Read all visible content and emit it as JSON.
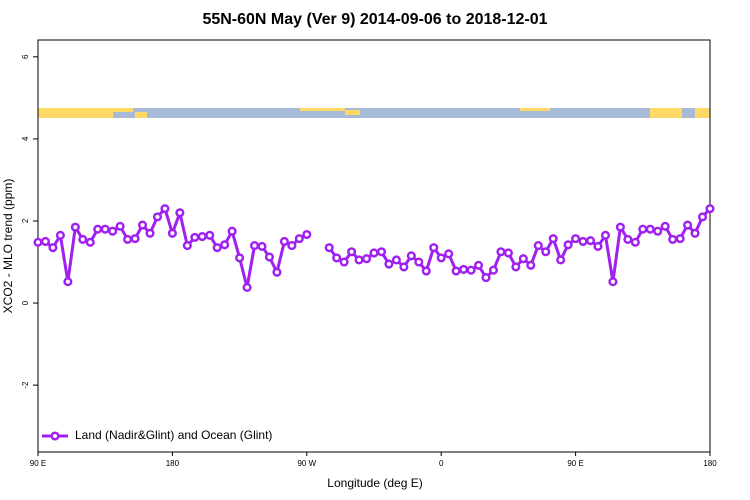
{
  "chart_data": {
    "type": "line",
    "title": "55N-60N May (Ver 9)   2014-09-06 to 2018-12-01",
    "x_label": "Longitude (deg E)",
    "y_label": "XCO2 - MLO trend (ppm)",
    "x": [
      90,
      95,
      100,
      105,
      110,
      115,
      120,
      125,
      130,
      135,
      140,
      145,
      150,
      155,
      160,
      165,
      170,
      175,
      180,
      185,
      190,
      195,
      200,
      205,
      210,
      215,
      220,
      225,
      230,
      235,
      240,
      245,
      250,
      255,
      260,
      265,
      270,
      275,
      280,
      285,
      290,
      295,
      300,
      305,
      310,
      315,
      320,
      325,
      330,
      335,
      340,
      345,
      350,
      355,
      360,
      365,
      370,
      375,
      380,
      385,
      390,
      395,
      400,
      405,
      410,
      415,
      420,
      425,
      430,
      435,
      440,
      445,
      450,
      455,
      460,
      465,
      470,
      475,
      480,
      485,
      490,
      495,
      500,
      505,
      510,
      515,
      520,
      525,
      530,
      535,
      540
    ],
    "series": [
      {
        "name": "Land (Nadir&Glint) and Ocean (Glint)",
        "color": "#a020f0",
        "values": [
          1.48,
          1.5,
          1.35,
          1.65,
          0.52,
          1.85,
          1.55,
          1.48,
          1.8,
          1.8,
          1.75,
          1.87,
          1.55,
          1.57,
          1.9,
          1.7,
          2.1,
          2.3,
          1.7,
          2.2,
          1.4,
          1.6,
          1.62,
          1.65,
          1.35,
          1.42,
          1.75,
          1.1,
          0.38,
          1.4,
          1.38,
          1.12,
          0.75,
          1.5,
          1.4,
          1.57,
          1.67,
          null,
          null,
          1.35,
          1.1,
          1.0,
          1.25,
          1.05,
          1.08,
          1.22,
          1.25,
          0.95,
          1.05,
          0.88,
          1.15,
          1.0,
          0.78,
          1.35,
          1.1,
          1.2,
          0.78,
          0.82,
          0.8,
          0.92,
          0.62,
          0.8,
          1.25,
          1.22,
          0.88,
          1.08,
          0.92,
          1.4,
          1.25,
          1.57,
          1.05,
          1.42,
          1.57,
          1.5,
          1.52,
          1.38,
          1.65,
          0.52,
          1.85,
          1.55,
          1.48,
          1.8,
          1.8,
          1.75,
          1.87,
          1.55,
          1.57,
          1.9,
          1.7,
          2.1,
          2.3
        ]
      }
    ],
    "xlim": [
      90,
      540
    ],
    "xticks": [
      {
        "value": 90,
        "label": "90 E"
      },
      180,
      {
        "value": 270,
        "label": "90 W"
      },
      {
        "value": 360,
        "label": "0"
      },
      {
        "value": 450,
        "label": "90 E"
      },
      {
        "value": 540,
        "label": "180"
      }
    ],
    "ylim": [
      -3.63,
      6.41
    ],
    "yticks": [
      -2,
      0,
      2,
      4,
      6
    ],
    "legend": "bottom-left"
  }
}
